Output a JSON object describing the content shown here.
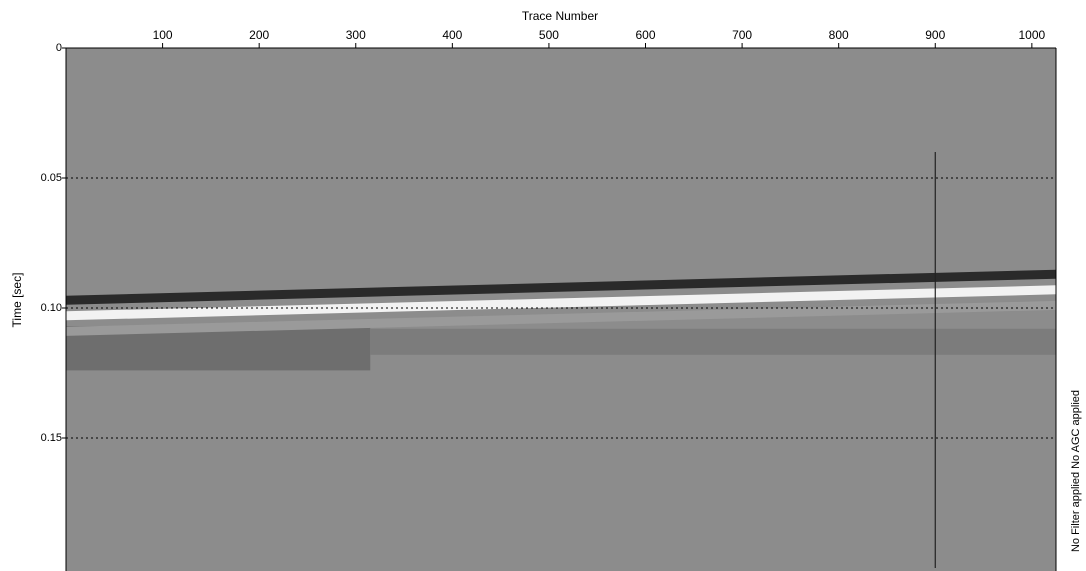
{
  "chart_data": {
    "type": "seismic",
    "title": "Trace Number",
    "y_label": "Time [sec]",
    "side_note": "No Filter applied  No AGC applied",
    "background": "#8c8c8c",
    "xlim": [
      0,
      1025
    ],
    "xticks": [
      100,
      200,
      300,
      400,
      500,
      600,
      700,
      800,
      900,
      1000
    ],
    "ylim": [
      0,
      0.2
    ],
    "yticks": [
      0,
      0.05,
      {
        "value": 0.1,
        "label": "0.10"
      },
      0.15
    ],
    "grid": true,
    "bands": [
      {
        "color": "#9a9a9a",
        "x": [
          0,
          1025
        ],
        "values": [
          0.109,
          0.099
        ]
      },
      {
        "color": "#f2f2f2",
        "x": [
          0,
          1025
        ],
        "values": [
          0.103,
          0.093
        ]
      },
      {
        "color": "#2a2a2a",
        "x": [
          0,
          1025
        ],
        "values": [
          0.097,
          0.087
        ]
      }
    ],
    "zones": [
      {
        "color": "#6e6e6e",
        "x": [
          0,
          315
        ],
        "values": [
          0.107,
          0.124
        ]
      },
      {
        "color": "#7c7c7c",
        "x": [
          315,
          1025
        ],
        "values": [
          0.108,
          0.118
        ]
      }
    ],
    "marker": {
      "color": "#222222",
      "x": 900,
      "values": [
        0.04,
        0.2
      ]
    }
  }
}
